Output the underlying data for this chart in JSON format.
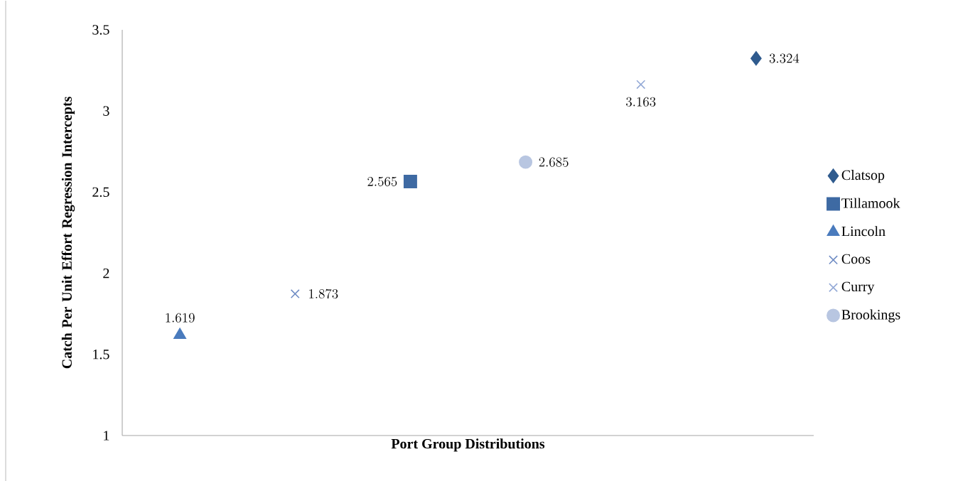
{
  "chart_data": {
    "type": "scatter",
    "xlabel": "Port Group Distributions",
    "ylabel": "Catch Per Unit Effort Regression Intercepts",
    "categories": [
      null,
      null,
      null,
      null,
      null,
      null
    ],
    "ylim": [
      1,
      3.5
    ],
    "yticks": [
      1,
      1.5,
      2,
      2.5,
      3,
      3.5
    ],
    "tick_labels": "y",
    "legend": "right",
    "data_labels": true,
    "series": [
      {
        "name": "Clatsop",
        "color": "#2f5b8e",
        "marker": "diamond",
        "values": [
          null,
          null,
          null,
          null,
          null,
          3.324
        ]
      },
      {
        "name": "Tillamook",
        "color": "#3e6aa3",
        "marker": "square",
        "values": [
          null,
          null,
          2.565,
          null,
          null,
          null
        ]
      },
      {
        "name": "Lincoln",
        "color": "#4a7bbd",
        "marker": "triangle",
        "values": [
          1.619,
          null,
          null,
          null,
          null,
          null
        ]
      },
      {
        "name": "Coos",
        "color": "#6f8cc4",
        "marker": "cross",
        "values": [
          null,
          1.873,
          null,
          null,
          null,
          null
        ]
      },
      {
        "name": "Curry",
        "color": "#93a9d6",
        "marker": "cross",
        "values": [
          null,
          null,
          null,
          null,
          3.163,
          null
        ]
      },
      {
        "name": "Brookings",
        "color": "#b8c6e1",
        "marker": "circle",
        "values": [
          null,
          null,
          null,
          2.685,
          null,
          null
        ]
      }
    ]
  }
}
